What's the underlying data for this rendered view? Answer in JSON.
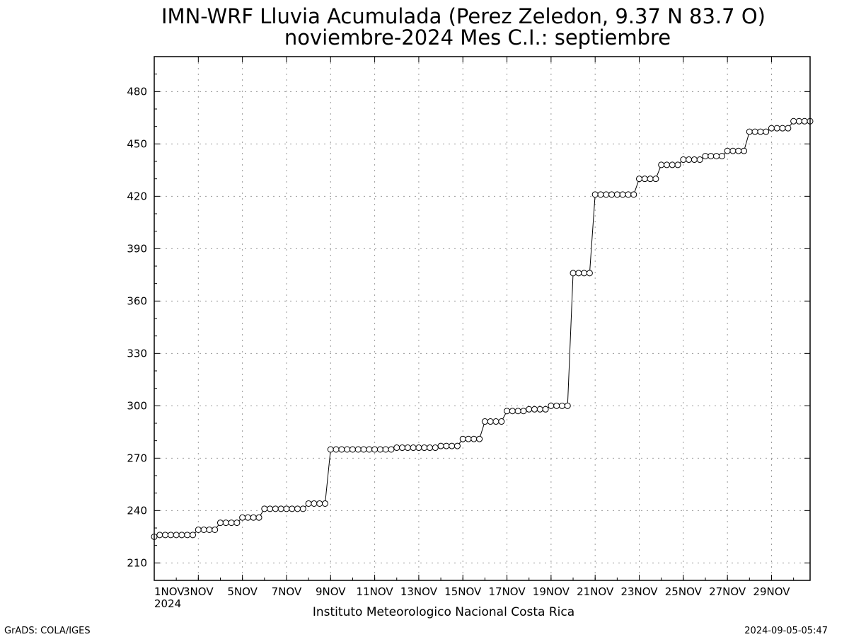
{
  "chart_data": {
    "type": "line",
    "title": "IMN-WRF  Lluvia Acumulada (Perez Zeledon, 9.37  N 83.7  O)",
    "subtitle": "noviembre-2024 Mes C.I.: septiembre",
    "xlabel": "Instituto Meteorologico Nacional Costa Rica",
    "ylabel": "",
    "footer_left": "GrADS: COLA/IGES",
    "footer_right": "2024-09-05-05:47",
    "x_year_label": "2024",
    "x_step_days": 0.25,
    "x_start_label": "1NOV 2024",
    "xlim_days": [
      0,
      29.75
    ],
    "ylim": [
      200,
      500
    ],
    "yticks": [
      210,
      240,
      270,
      300,
      330,
      360,
      390,
      420,
      450,
      480
    ],
    "xticks": [
      {
        "day": 0,
        "label": "1NOV"
      },
      {
        "day": 2,
        "label": "3NOV"
      },
      {
        "day": 4,
        "label": "5NOV"
      },
      {
        "day": 6,
        "label": "7NOV"
      },
      {
        "day": 8,
        "label": "9NOV"
      },
      {
        "day": 10,
        "label": "11NOV"
      },
      {
        "day": 12,
        "label": "13NOV"
      },
      {
        "day": 14,
        "label": "15NOV"
      },
      {
        "day": 16,
        "label": "17NOV"
      },
      {
        "day": 18,
        "label": "19NOV"
      },
      {
        "day": 20,
        "label": "21NOV"
      },
      {
        "day": 22,
        "label": "23NOV"
      },
      {
        "day": 24,
        "label": "25NOV"
      },
      {
        "day": 26,
        "label": "27NOV"
      },
      {
        "day": 28,
        "label": "29NOV"
      }
    ],
    "grid": true,
    "marker": "open-circle",
    "series": [
      {
        "values": [
          225,
          226,
          226,
          226,
          226,
          226,
          226,
          226,
          229,
          229,
          229,
          229,
          233,
          233,
          233,
          233,
          236,
          236,
          236,
          236,
          241,
          241,
          241,
          241,
          241,
          241,
          241,
          241,
          244,
          244,
          244,
          244,
          275,
          275,
          275,
          275,
          275,
          275,
          275,
          275,
          275,
          275,
          275,
          275,
          276,
          276,
          276,
          276,
          276,
          276,
          276,
          276,
          277,
          277,
          277,
          277,
          281,
          281,
          281,
          281,
          291,
          291,
          291,
          291,
          297,
          297,
          297,
          297,
          298,
          298,
          298,
          298,
          300,
          300,
          300,
          300,
          376,
          376,
          376,
          376,
          421,
          421,
          421,
          421,
          421,
          421,
          421,
          421,
          430,
          430,
          430,
          430,
          438,
          438,
          438,
          438,
          441,
          441,
          441,
          441,
          443,
          443,
          443,
          443,
          446,
          446,
          446,
          446,
          457,
          457,
          457,
          457,
          459,
          459,
          459,
          459,
          463,
          463,
          463,
          463
        ]
      }
    ]
  }
}
